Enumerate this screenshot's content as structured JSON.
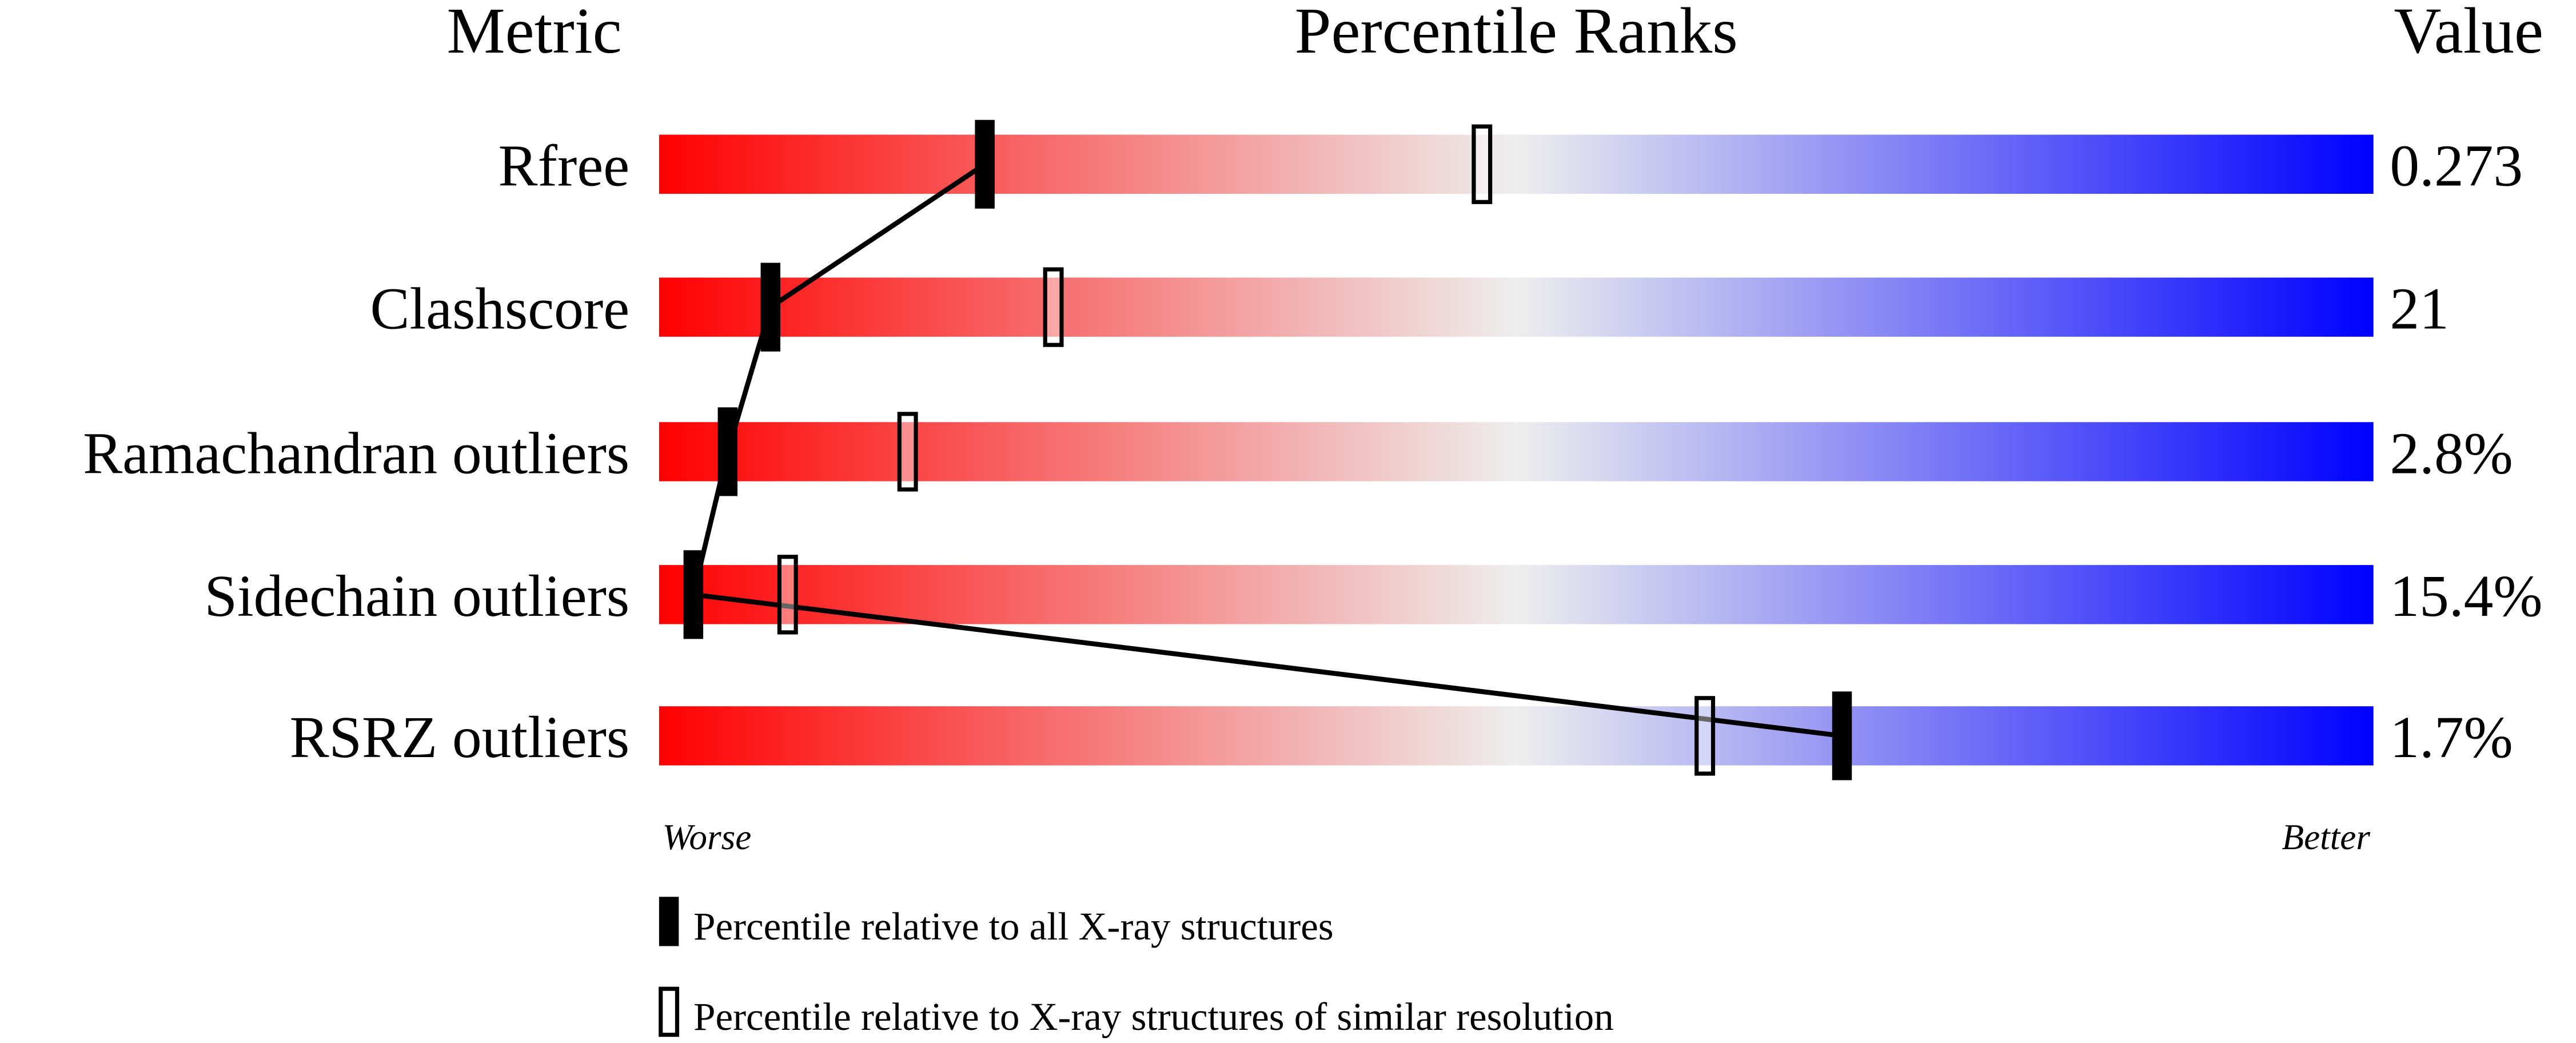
{
  "chart_data": {
    "type": "bar",
    "headers": {
      "metric": "Metric",
      "ranks": "Percentile Ranks",
      "value": "Value"
    },
    "xlim": [
      0,
      100
    ],
    "axis_labels": {
      "left": "Worse",
      "right": "Better"
    },
    "gradient_colors": {
      "worse": "#ff0000",
      "middle": "#eeeeee",
      "better": "#0000ff"
    },
    "metrics": [
      {
        "name": "Rfree",
        "value": "0.273",
        "percentile_all": 19,
        "percentile_similar": 48
      },
      {
        "name": "Clashscore",
        "value": "21",
        "percentile_all": 6.5,
        "percentile_similar": 23
      },
      {
        "name": "Ramachandran outliers",
        "value": "2.8%",
        "percentile_all": 4,
        "percentile_similar": 14.5
      },
      {
        "name": "Sidechain outliers",
        "value": "15.4%",
        "percentile_all": 2,
        "percentile_similar": 7.5
      },
      {
        "name": "RSRZ outliers",
        "value": "1.7%",
        "percentile_all": 69,
        "percentile_similar": 61
      }
    ],
    "legend": [
      {
        "marker": "filled",
        "label": "Percentile relative to all X-ray structures"
      },
      {
        "marker": "open",
        "label": "Percentile relative to X-ray structures of similar resolution"
      }
    ]
  }
}
